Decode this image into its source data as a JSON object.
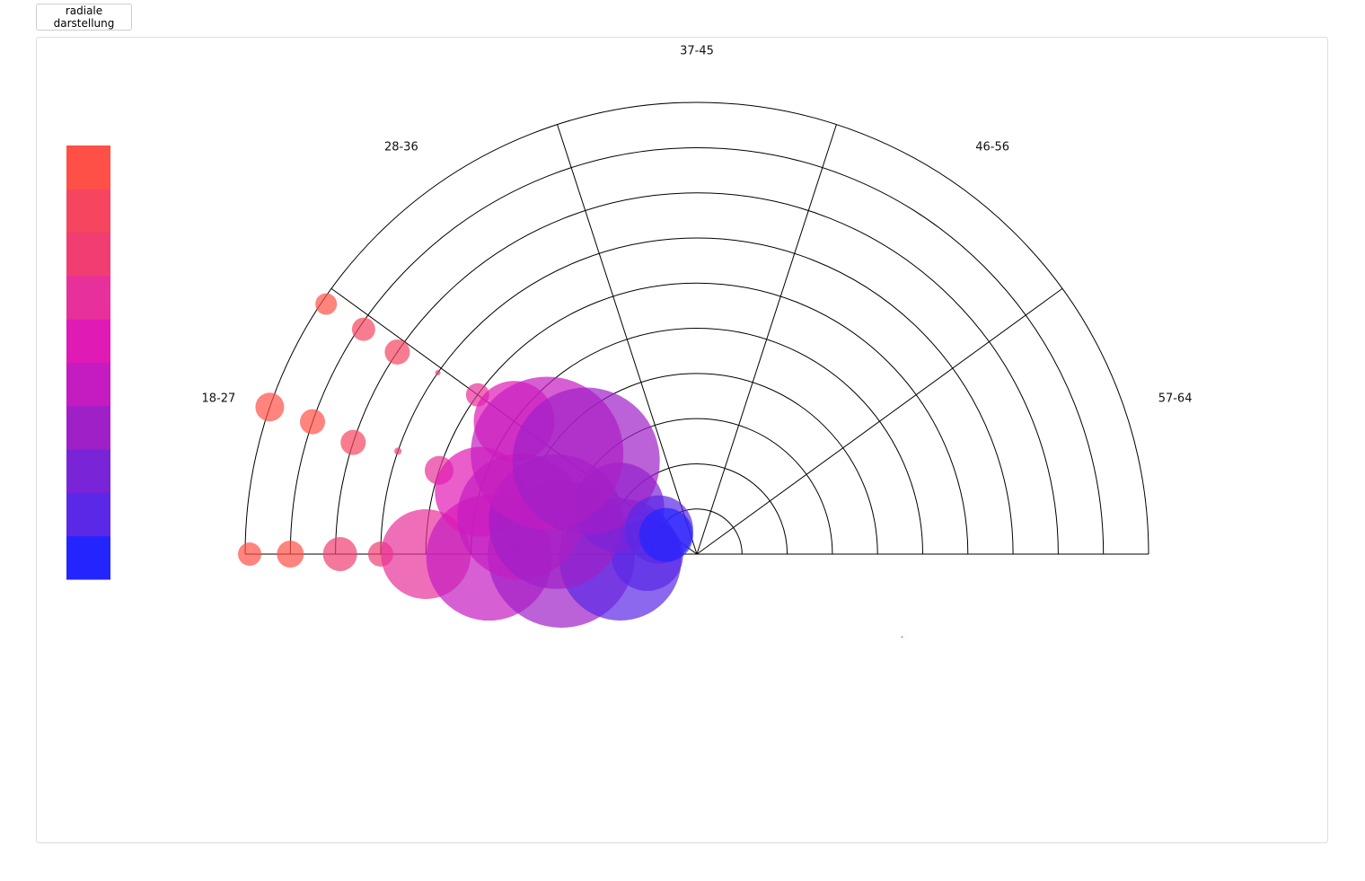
{
  "button": {
    "label": "radiale darstellung"
  },
  "chart_data": {
    "type": "radial-bubble",
    "sectors": [
      "18-27",
      "28-36",
      "37-45",
      "46-56",
      "57-64"
    ],
    "angle_range": [
      180,
      0
    ],
    "rlim": [
      0,
      10
    ],
    "rticks": [
      1,
      2,
      3,
      4,
      5,
      6,
      7,
      8,
      9,
      10
    ],
    "colorscale": [
      "#2424ff",
      "#5a28e6",
      "#7a24d8",
      "#a020c8",
      "#c41cc0",
      "#e01ab5",
      "#e8309a",
      "#f03e72",
      "#f5455f",
      "#fe5046"
    ],
    "points": [
      {
        "r": 9.9,
        "angle": 180,
        "size": 13
      },
      {
        "r": 9.0,
        "angle": 180,
        "size": 15
      },
      {
        "r": 7.9,
        "angle": 180,
        "size": 19
      },
      {
        "r": 7.0,
        "angle": 180,
        "size": 14
      },
      {
        "r": 6.0,
        "angle": 180,
        "size": 50
      },
      {
        "r": 4.6,
        "angle": 181,
        "size": 70
      },
      {
        "r": 3.0,
        "angle": 180,
        "size": 82
      },
      {
        "r": 1.7,
        "angle": 184,
        "size": 68
      },
      {
        "r": 1.1,
        "angle": 181,
        "size": 40
      },
      {
        "r": 10.0,
        "angle": 161,
        "size": 16
      },
      {
        "r": 9.0,
        "angle": 161,
        "size": 14
      },
      {
        "r": 8.0,
        "angle": 162,
        "size": 14
      },
      {
        "r": 7.0,
        "angle": 161,
        "size": 4
      },
      {
        "r": 6.0,
        "angle": 162,
        "size": 16
      },
      {
        "r": 5.0,
        "angle": 164,
        "size": 50
      },
      {
        "r": 4.0,
        "angle": 168,
        "size": 70
      },
      {
        "r": 3.2,
        "angle": 167,
        "size": 75
      },
      {
        "r": 2.0,
        "angle": 149,
        "size": 50
      },
      {
        "r": 9.9,
        "angle": 146,
        "size": 12
      },
      {
        "r": 8.9,
        "angle": 146,
        "size": 13
      },
      {
        "r": 8.0,
        "angle": 146,
        "size": 14
      },
      {
        "r": 7.0,
        "angle": 145,
        "size": 3
      },
      {
        "r": 6.0,
        "angle": 144,
        "size": 13
      },
      {
        "r": 5.0,
        "angle": 144,
        "size": 45
      },
      {
        "r": 4.0,
        "angle": 146,
        "size": 85
      },
      {
        "r": 3.2,
        "angle": 140,
        "size": 82
      },
      {
        "r": 1.0,
        "angle": 147,
        "size": 38
      },
      {
        "r": 0.8,
        "angle": 148,
        "size": 30
      },
      {
        "r": 4.9,
        "angle": -22,
        "size": 1
      }
    ]
  }
}
